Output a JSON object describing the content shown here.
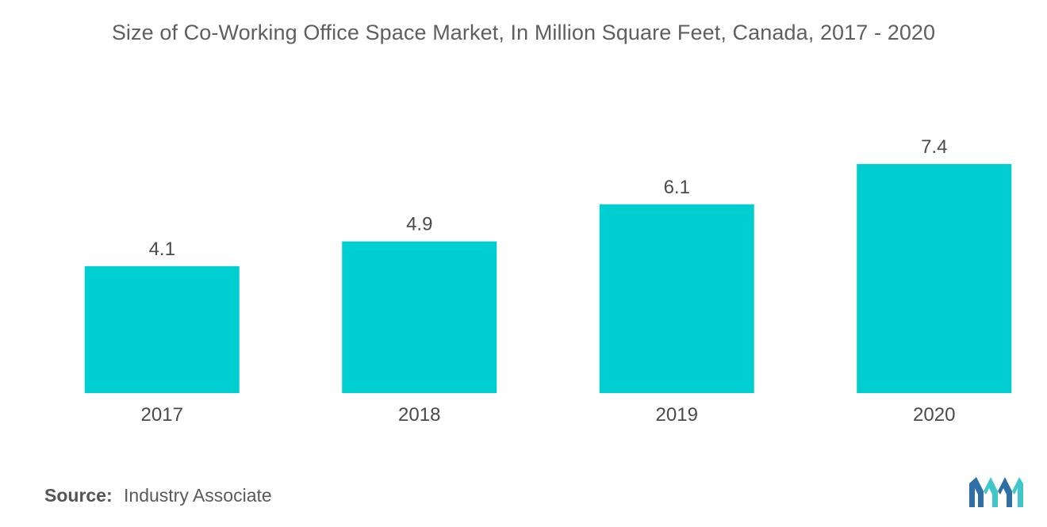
{
  "chart_data": {
    "type": "bar",
    "title": "Size of Co-Working Office Space Market, In Million Square Feet, Canada, 2017 - 2020",
    "categories": [
      "2017",
      "2018",
      "2019",
      "2020"
    ],
    "values": [
      4.1,
      4.9,
      6.1,
      7.4
    ],
    "value_labels": [
      "4.1",
      "4.9",
      "6.1",
      "7.4"
    ],
    "xlabel": "",
    "ylabel": "",
    "ylim": [
      0,
      7.4
    ],
    "grid": false,
    "legend": "none",
    "bar_color": "#00CED1"
  },
  "source": {
    "label": "Source:",
    "text": "Industry Associate"
  },
  "logo": {
    "icon": "mordor-intelligence-logo-icon",
    "colors": [
      "#2E6FA7",
      "#3FC6C9"
    ]
  }
}
